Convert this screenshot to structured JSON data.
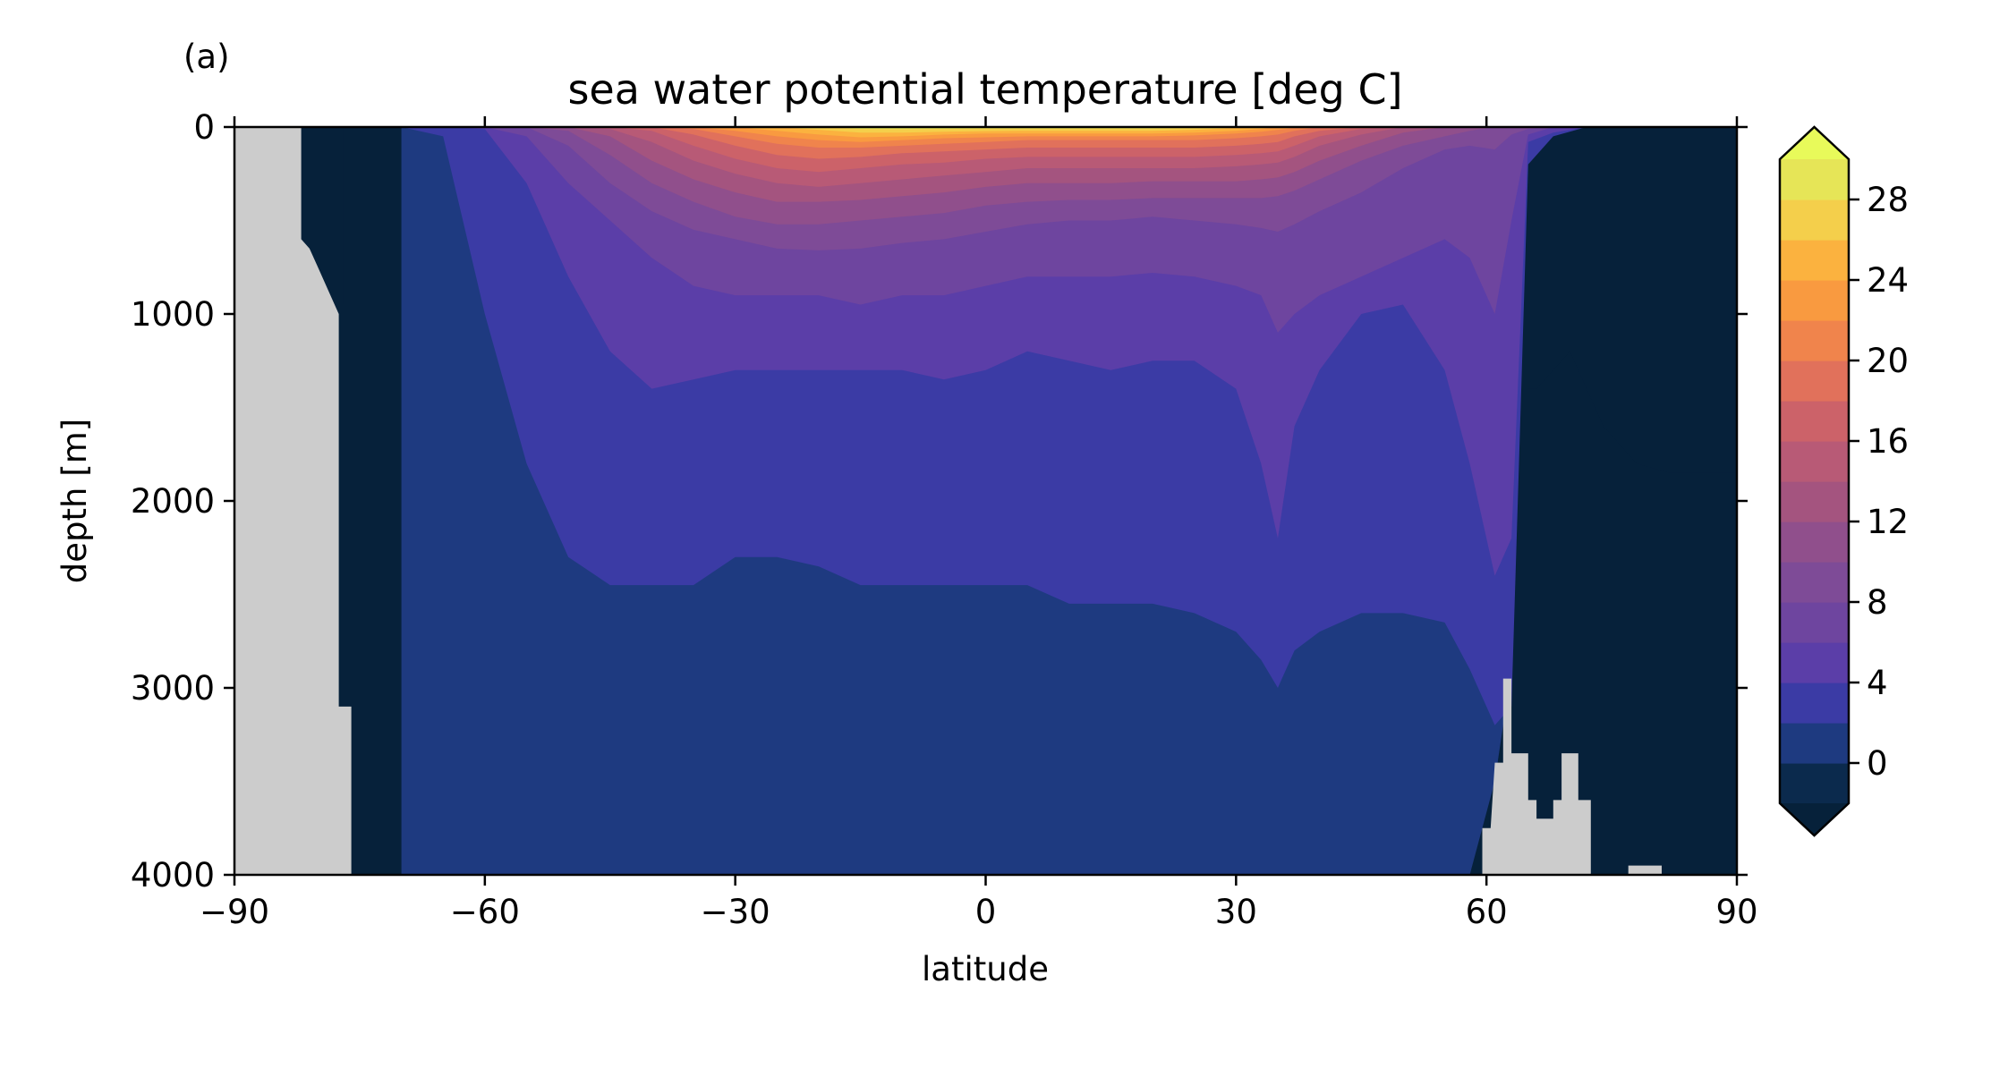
{
  "chart_data": {
    "type": "heatmap",
    "panel_label": "(a)",
    "title": "sea water potential temperature [deg C]",
    "xlabel": "latitude",
    "ylabel": "depth [m]",
    "xlim": [
      -90,
      90
    ],
    "ylim": [
      4000,
      0
    ],
    "xticks": [
      -90,
      -60,
      -30,
      0,
      30,
      60,
      90
    ],
    "xtick_labels": [
      "−90",
      "−60",
      "−30",
      "0",
      "30",
      "60",
      "90"
    ],
    "yticks": [
      0,
      1000,
      2000,
      3000,
      4000
    ],
    "ytick_labels": [
      "0",
      "1000",
      "2000",
      "3000",
      "4000"
    ],
    "land_color": "#cccccc",
    "colorbar": {
      "levels": [
        -2,
        0,
        2,
        4,
        6,
        8,
        10,
        12,
        14,
        16,
        18,
        20,
        22,
        24,
        26,
        28,
        30
      ],
      "colors": [
        "#0b2a4d",
        "#1e3a80",
        "#3b3ba5",
        "#5b3ea8",
        "#6e459f",
        "#7e4b97",
        "#904f8c",
        "#a4547f",
        "#b85a76",
        "#cc6269",
        "#e1715b",
        "#f0844c",
        "#f99a40",
        "#fbb23f",
        "#f4cf4b",
        "#e6e557"
      ],
      "under_color": "#06213a",
      "over_color": "#e8fa5a",
      "extend": "both",
      "tick_values": [
        0,
        4,
        8,
        12,
        16,
        20,
        24,
        28
      ],
      "tick_labels": [
        "0",
        "4",
        "8",
        "12",
        "16",
        "20",
        "24",
        "28"
      ]
    },
    "profiles": {
      "latitudes": [
        -90,
        -85,
        -82,
        -79,
        -76,
        -70,
        -65,
        -60,
        -55,
        -50,
        -45,
        -40,
        -35,
        -30,
        -25,
        -20,
        -15,
        -10,
        -5,
        0,
        5,
        10,
        15,
        20,
        25,
        30,
        33,
        35,
        37,
        40,
        45,
        50,
        55,
        58,
        61,
        63,
        65,
        68,
        72,
        76,
        80,
        85,
        90
      ],
      "levels_depth": {
        "0": [
          null,
          null,
          null,
          null,
          null,
          4000,
          4000,
          4000,
          4000,
          4000,
          4000,
          4000,
          4000,
          4000,
          4000,
          4000,
          4000,
          4000,
          4000,
          4000,
          4000,
          4000,
          4000,
          4000,
          4000,
          4000,
          4000,
          4000,
          4000,
          4000,
          4000,
          4000,
          4000,
          4000,
          3500,
          2900,
          0,
          0,
          0,
          0,
          0,
          0,
          0
        ],
        "2": [
          null,
          null,
          null,
          null,
          null,
          0,
          50,
          1000,
          1800,
          2300,
          2450,
          2450,
          2450,
          2300,
          2300,
          2350,
          2450,
          2450,
          2450,
          2450,
          2450,
          2550,
          2550,
          2550,
          2600,
          2700,
          2850,
          3000,
          2800,
          2700,
          2600,
          2600,
          2650,
          2900,
          3200,
          3100,
          200,
          50,
          0,
          0,
          0,
          0,
          0
        ],
        "4": [
          null,
          null,
          null,
          null,
          null,
          0,
          0,
          10,
          300,
          800,
          1200,
          1400,
          1350,
          1300,
          1300,
          1300,
          1300,
          1300,
          1350,
          1300,
          1200,
          1250,
          1300,
          1250,
          1250,
          1400,
          1800,
          2200,
          1600,
          1300,
          1000,
          950,
          1300,
          1800,
          2400,
          2200,
          80,
          30,
          0,
          0,
          0,
          0,
          0
        ],
        "6": [
          null,
          null,
          null,
          null,
          null,
          0,
          0,
          0,
          50,
          300,
          500,
          700,
          850,
          900,
          900,
          900,
          950,
          900,
          900,
          850,
          800,
          800,
          800,
          780,
          800,
          850,
          900,
          1100,
          1000,
          900,
          800,
          700,
          600,
          700,
          1000,
          500,
          40,
          0,
          0,
          0,
          0,
          0,
          0
        ],
        "8": [
          null,
          null,
          null,
          null,
          null,
          0,
          0,
          0,
          0,
          100,
          300,
          450,
          550,
          600,
          650,
          660,
          650,
          620,
          600,
          560,
          520,
          500,
          500,
          480,
          500,
          520,
          540,
          560,
          520,
          450,
          350,
          220,
          120,
          100,
          120,
          40,
          10,
          0,
          0,
          0,
          0,
          0,
          0
        ],
        "10": [
          null,
          null,
          null,
          null,
          null,
          0,
          0,
          0,
          0,
          20,
          150,
          300,
          400,
          480,
          520,
          520,
          500,
          480,
          460,
          420,
          400,
          390,
          390,
          380,
          380,
          380,
          380,
          370,
          340,
          280,
          180,
          100,
          50,
          20,
          0,
          0,
          0,
          0,
          0,
          0,
          0,
          0,
          0
        ],
        "12": [
          null,
          null,
          null,
          null,
          null,
          0,
          0,
          0,
          0,
          0,
          50,
          180,
          280,
          350,
          400,
          400,
          390,
          370,
          350,
          320,
          300,
          300,
          300,
          290,
          290,
          290,
          280,
          270,
          240,
          180,
          100,
          30,
          0,
          0,
          0,
          0,
          0,
          0,
          0,
          0,
          0,
          0,
          0
        ],
        "14": [
          null,
          null,
          null,
          null,
          null,
          0,
          0,
          0,
          0,
          0,
          10,
          80,
          180,
          250,
          300,
          320,
          300,
          280,
          260,
          240,
          220,
          220,
          220,
          220,
          220,
          210,
          200,
          190,
          160,
          100,
          40,
          0,
          0,
          0,
          0,
          0,
          0,
          0,
          0,
          0,
          0,
          0,
          0
        ],
        "16": [
          null,
          null,
          null,
          null,
          null,
          0,
          0,
          0,
          0,
          0,
          0,
          20,
          100,
          170,
          220,
          240,
          220,
          200,
          190,
          170,
          160,
          160,
          160,
          160,
          160,
          150,
          140,
          130,
          100,
          50,
          10,
          0,
          0,
          0,
          0,
          0,
          0,
          0,
          0,
          0,
          0,
          0,
          0
        ],
        "18": [
          null,
          null,
          null,
          null,
          null,
          0,
          0,
          0,
          0,
          0,
          0,
          0,
          40,
          100,
          150,
          170,
          160,
          140,
          130,
          120,
          110,
          110,
          110,
          110,
          110,
          100,
          90,
          80,
          50,
          20,
          0,
          0,
          0,
          0,
          0,
          0,
          0,
          0,
          0,
          0,
          0,
          0,
          0
        ],
        "20": [
          null,
          null,
          null,
          null,
          null,
          0,
          0,
          0,
          0,
          0,
          0,
          0,
          10,
          50,
          90,
          110,
          110,
          100,
          90,
          80,
          70,
          70,
          70,
          70,
          70,
          60,
          50,
          40,
          20,
          0,
          0,
          0,
          0,
          0,
          0,
          0,
          0,
          0,
          0,
          0,
          0,
          0,
          0
        ],
        "22": [
          null,
          null,
          null,
          null,
          null,
          0,
          0,
          0,
          0,
          0,
          0,
          0,
          0,
          20,
          50,
          70,
          80,
          70,
          60,
          55,
          50,
          50,
          50,
          50,
          45,
          35,
          25,
          15,
          5,
          0,
          0,
          0,
          0,
          0,
          0,
          0,
          0,
          0,
          0,
          0,
          0,
          0,
          0
        ],
        "24": [
          null,
          null,
          null,
          null,
          null,
          0,
          0,
          0,
          0,
          0,
          0,
          0,
          0,
          0,
          20,
          40,
          55,
          50,
          40,
          35,
          35,
          35,
          35,
          35,
          30,
          20,
          10,
          0,
          0,
          0,
          0,
          0,
          0,
          0,
          0,
          0,
          0,
          0,
          0,
          0,
          0,
          0,
          0
        ],
        "26": [
          null,
          null,
          null,
          null,
          null,
          0,
          0,
          0,
          0,
          0,
          0,
          0,
          0,
          0,
          0,
          15,
          30,
          30,
          25,
          22,
          20,
          20,
          20,
          20,
          15,
          5,
          0,
          0,
          0,
          0,
          0,
          0,
          0,
          0,
          0,
          0,
          0,
          0,
          0,
          0,
          0,
          0,
          0
        ],
        "28": [
          null,
          null,
          null,
          null,
          null,
          0,
          0,
          0,
          0,
          0,
          0,
          0,
          0,
          0,
          0,
          0,
          10,
          12,
          10,
          8,
          8,
          8,
          8,
          8,
          5,
          0,
          0,
          0,
          0,
          0,
          0,
          0,
          0,
          0,
          0,
          0,
          0,
          0,
          0,
          0,
          0,
          0,
          0
        ]
      },
      "south_shelf_cold": {
        "latitudes": [
          -82,
          -81,
          -80,
          -79,
          -78,
          -77
        ],
        "max_depth": [
          600,
          650,
          750,
          850,
          950,
          950
        ]
      },
      "north_deep_cold": {
        "latitudes": [
          65,
          66,
          68,
          70,
          72,
          74,
          78,
          82,
          90
        ],
        "top_depth": [
          1400,
          1400,
          1300,
          1200,
          1400,
          1600,
          1800,
          1850,
          1850
        ]
      }
    },
    "land": [
      {
        "name": "antarctica",
        "lat": [
          -90,
          -90,
          -82,
          -82,
          -81,
          -80,
          -79,
          -78,
          -77.5,
          -77.5,
          -76,
          -76,
          -90
        ],
        "depth": [
          4000,
          0,
          0,
          600,
          650,
          750,
          850,
          950,
          1000,
          3100,
          3100,
          4000,
          4000
        ]
      },
      {
        "name": "ridge-61",
        "lat": [
          59.5,
          59.5,
          60.5,
          61,
          62,
          62,
          63,
          63,
          65,
          65,
          66,
          66,
          68,
          68,
          69,
          69,
          71,
          71,
          72.5,
          72.5,
          59.5
        ],
        "depth": [
          4000,
          3750,
          3750,
          3400,
          3400,
          2950,
          2950,
          3350,
          3350,
          3600,
          3600,
          3700,
          3700,
          3600,
          3600,
          3350,
          3350,
          3600,
          3600,
          4000,
          4000
        ]
      },
      {
        "name": "shelf-78",
        "lat": [
          77,
          77,
          81,
          81
        ],
        "depth": [
          4000,
          3950,
          3950,
          4000
        ]
      }
    ]
  }
}
